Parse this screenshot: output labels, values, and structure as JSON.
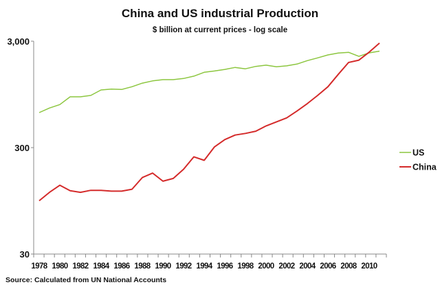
{
  "chart_data": {
    "type": "line",
    "title": "China and US industrial Production",
    "subtitle": "$ billion at current prices - log scale",
    "xlabel": "",
    "ylabel": "",
    "y_scale": "log",
    "ylim": [
      30,
      3000
    ],
    "y_ticks": [
      {
        "value": 3000,
        "label": "3,000"
      },
      {
        "value": 300,
        "label": "300"
      },
      {
        "value": 30,
        "label": "30"
      }
    ],
    "x_tick_labels": [
      "1978",
      "1980",
      "1982",
      "1984",
      "1986",
      "1988",
      "1990",
      "1992",
      "1994",
      "1996",
      "1998",
      "2000",
      "2002",
      "2004",
      "2006",
      "2008",
      "2010"
    ],
    "x": [
      1978,
      1979,
      1980,
      1981,
      1982,
      1983,
      1984,
      1985,
      1986,
      1987,
      1988,
      1989,
      1990,
      1991,
      1992,
      1993,
      1994,
      1995,
      1996,
      1997,
      1998,
      1999,
      2000,
      2001,
      2002,
      2003,
      2004,
      2005,
      2006,
      2007,
      2008,
      2009,
      2010,
      2011
    ],
    "grid": false,
    "legend_position": "right",
    "series": [
      {
        "name": "US",
        "color": "#8cc63f",
        "values": [
          640,
          707,
          761,
          900,
          900,
          928,
          1045,
          1065,
          1055,
          1120,
          1210,
          1272,
          1305,
          1305,
          1340,
          1408,
          1530,
          1575,
          1630,
          1700,
          1650,
          1740,
          1785,
          1725,
          1760,
          1830,
          1970,
          2090,
          2230,
          2320,
          2360,
          2160,
          2330,
          2420
        ]
      },
      {
        "name": "China",
        "color": "#d42a2a",
        "values": [
          95,
          114,
          133,
          118,
          114,
          119,
          119,
          117,
          117,
          122,
          157,
          173,
          145,
          154,
          188,
          246,
          228,
          305,
          357,
          394,
          408,
          428,
          480,
          523,
          571,
          662,
          777,
          928,
          1120,
          1463,
          1893,
          1990,
          2370,
          2880
        ]
      }
    ],
    "source": "Source: Calculated from UN  National Accounts"
  }
}
